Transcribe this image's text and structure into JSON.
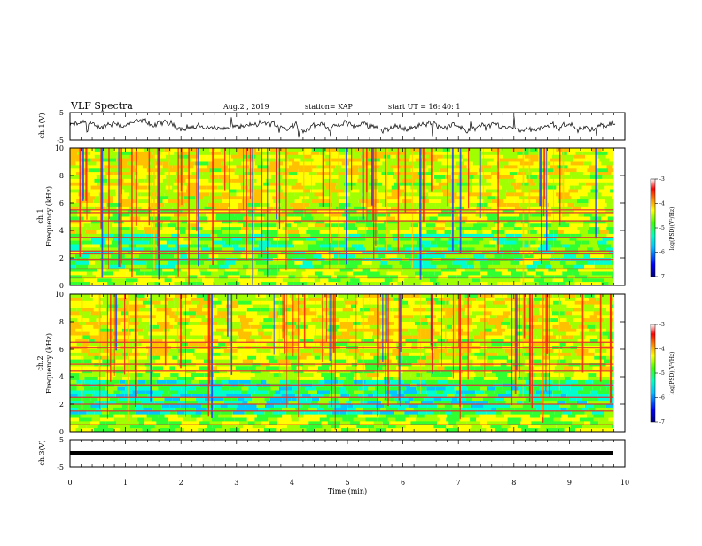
{
  "header": {
    "title": "VLF Spectra",
    "date": "Aug.2 , 2019",
    "station": "station= KAP",
    "start": "start UT = 16: 40: 1"
  },
  "colors": {
    "spectrogram_scale": [
      "#00008b",
      "#0000ff",
      "#00a0ff",
      "#00ffff",
      "#00ff80",
      "#80ff00",
      "#ffff00",
      "#ffa000",
      "#ff0000",
      "#ff6060",
      "#ffffff"
    ],
    "line": "#000000"
  },
  "chart_data": [
    {
      "type": "line",
      "name": "ch1-waveform",
      "ylabel": "ch.1(V)",
      "ylim": [
        -5,
        5
      ],
      "yticks": [
        "5",
        "-5"
      ],
      "xlim": [
        0,
        10
      ],
      "description_values": "noisy waveform fluctuating roughly between -4 and 4 V over 0-9.8 min"
    },
    {
      "type": "heatmap",
      "name": "ch1-spectrogram",
      "ylabel": "ch.1\nFrequency (kHz)",
      "ylim": [
        0,
        10
      ],
      "yticks": [
        "0",
        "2",
        "4",
        "6",
        "8",
        "10"
      ],
      "xlim": [
        0,
        10
      ],
      "data_end_x": 9.8,
      "colorbar": {
        "label": "log(PSD)(V²/Hz)",
        "range": [
          -7,
          -3
        ],
        "ticks": [
          "-3",
          "-4",
          "-5",
          "-6",
          "-7"
        ]
      },
      "lines_khz": [
        0.6,
        1.2,
        1.9,
        2.3,
        2.5,
        3.5,
        4.7,
        5.3,
        5.5
      ]
    },
    {
      "type": "heatmap",
      "name": "ch2-spectrogram",
      "ylabel": "ch.2\nFrequency (kHz)",
      "ylim": [
        0,
        10
      ],
      "yticks": [
        "0",
        "2",
        "4",
        "6",
        "8",
        "10"
      ],
      "xlim": [
        0,
        10
      ],
      "data_end_x": 9.8,
      "colorbar": {
        "label": "log(PSD)(V²/Hz)",
        "range": [
          -7,
          -3
        ],
        "ticks": [
          "-3",
          "-4",
          "-5",
          "-6",
          "-7"
        ]
      },
      "lines_khz": [
        0.5,
        1.5,
        2.0,
        2.5,
        3.4,
        4.4,
        4.9,
        6.1,
        6.5
      ]
    },
    {
      "type": "line",
      "name": "ch3-waveform",
      "ylabel": "ch.3(V)",
      "ylim": [
        -5,
        5
      ],
      "yticks": [
        "5",
        "-5"
      ],
      "xlim": [
        0,
        10
      ],
      "constant_value": -1.5
    }
  ],
  "xaxis": {
    "label": "Time (min)",
    "ticks": [
      "0",
      "1",
      "2",
      "3",
      "4",
      "5",
      "6",
      "7",
      "8",
      "9",
      "10"
    ]
  }
}
